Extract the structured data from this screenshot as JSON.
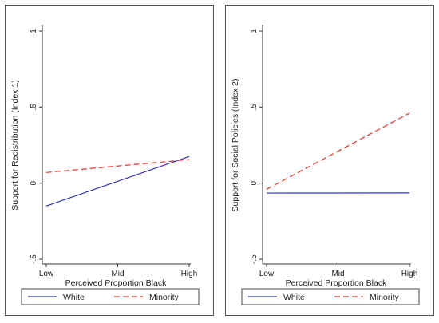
{
  "colors": {
    "white": "#3333bb",
    "minority": "#e8322a"
  },
  "chart_data": [
    {
      "type": "line",
      "xlabel": "Perceived Proportion Black",
      "ylabel": "Support for Redistribution (Index 1)",
      "categories": [
        "Low",
        "Mid",
        "High"
      ],
      "ylim": [
        -0.5,
        1
      ],
      "yticks": [
        "-.5",
        "0",
        ".5",
        "1"
      ],
      "grid": false,
      "legend_position": "bottom",
      "series": [
        {
          "name": "White",
          "values": [
            -0.15,
            0.0125,
            0.175
          ],
          "style": "solid"
        },
        {
          "name": "Minority",
          "values": [
            0.07,
            0.1125,
            0.155
          ],
          "style": "dashed"
        }
      ]
    },
    {
      "type": "line",
      "xlabel": "Perceived Proportion Black",
      "ylabel": "Support for Social Policies (Index 2)",
      "categories": [
        "Low",
        "Mid",
        "High"
      ],
      "ylim": [
        -0.5,
        1
      ],
      "yticks": [
        "-.5",
        "0",
        ".5",
        "1"
      ],
      "grid": false,
      "legend_position": "bottom",
      "series": [
        {
          "name": "White",
          "values": [
            -0.065,
            -0.0645,
            -0.064
          ],
          "style": "solid"
        },
        {
          "name": "Minority",
          "values": [
            -0.04,
            0.21,
            0.46
          ],
          "style": "dashed"
        }
      ]
    }
  ]
}
